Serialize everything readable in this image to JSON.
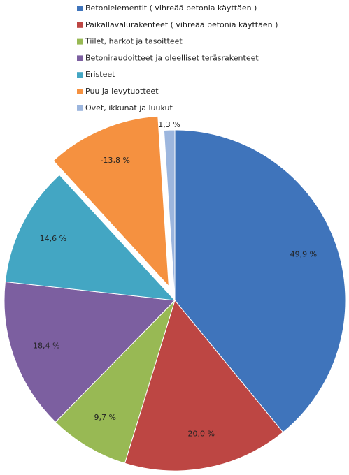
{
  "chart_data": {
    "type": "pie",
    "categories": [
      "Betonielementit ( vihreää betonia käyttäen )",
      "Paikallavalurakenteet ( vihreää betonia käyttäen )",
      "Tiilet, harkot ja tasoitteet",
      "Betoniraudoitteet ja oleelliset teräsrakenteet",
      "Eristeet",
      "Puu ja levytuotteet",
      "Ovet, ikkunat ja luukut"
    ],
    "values": [
      49.9,
      20.0,
      9.7,
      18.4,
      14.6,
      -13.8,
      1.3
    ],
    "value_labels": [
      "49,9 %",
      "20,0 %",
      "9,7 %",
      "18,4 %",
      "14,6 %",
      "-13,8 %",
      "1,3 %"
    ],
    "colors": [
      "#3f74bb",
      "#bd4643",
      "#98b954",
      "#7c5fa0",
      "#43a6c3",
      "#f59140",
      "#9cb6de"
    ],
    "legend": "top"
  }
}
